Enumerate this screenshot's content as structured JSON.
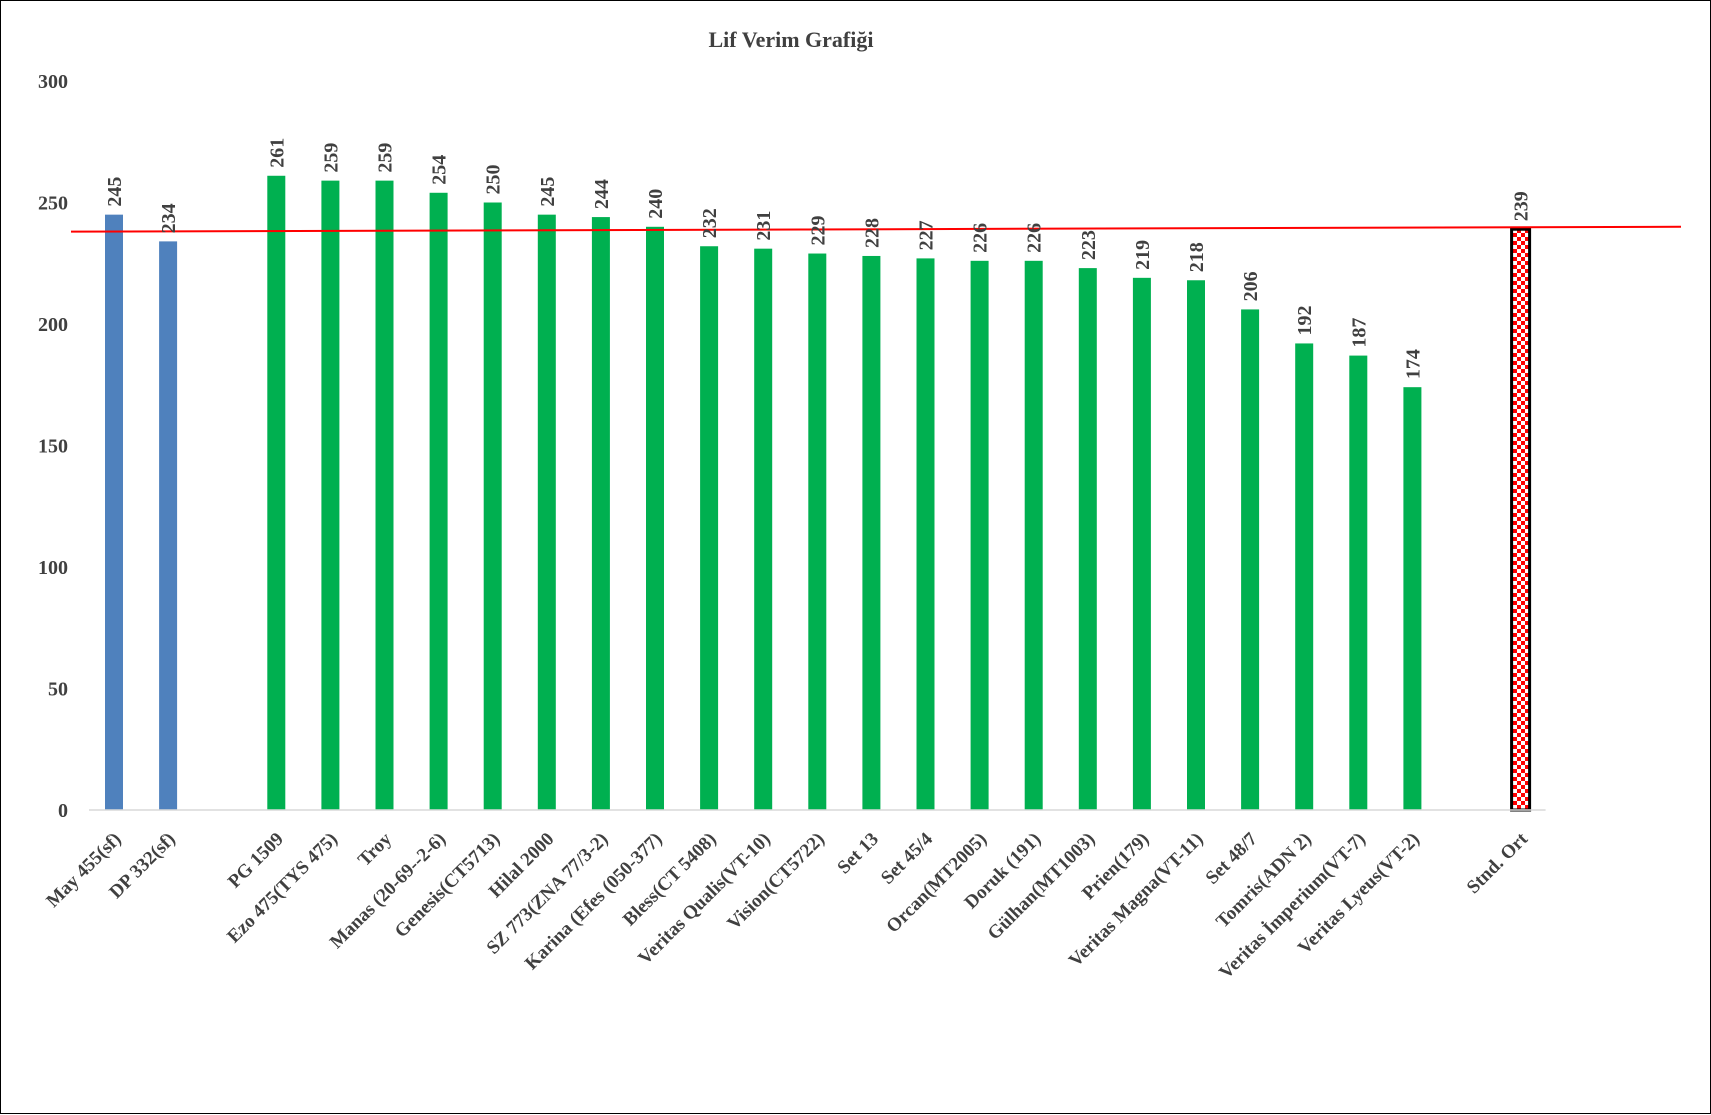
{
  "chart_data": {
    "type": "bar",
    "title": "Lif Verim Grafiği",
    "xlabel": "",
    "ylabel": "",
    "ylim": [
      0,
      300
    ],
    "yticks": [
      0,
      50,
      100,
      150,
      200,
      250,
      300
    ],
    "grid": false,
    "legend": "none",
    "categories": [
      "May 455(sf)",
      "DP 332(sf)",
      "",
      "PG 1509",
      "Ezo 475(TYS 475)",
      "Troy",
      "Manas (20-69--2-6)",
      "Genesis(CT5713)",
      "Hilal 2000",
      "SZ 773(ZNA 77/3-2)",
      "Karina (Efes (050-377)",
      "Bless(CT 5408)",
      "Veritas Qualis(VT-10)",
      "Vision(CT5722)",
      "Set 13",
      "Set 45/4",
      "Orcan(MT2005)",
      "Doruk (191)",
      "Gülhan(MT1003)",
      "Prien(179)",
      "Veritas Magna(VT-11)",
      "Set 48/7",
      "Tomris(ADN 2)",
      "Veritas İmperium(VT-7)",
      "Veritas Lyeus(VT-2)",
      "",
      "Stnd. Ort"
    ],
    "values": [
      245,
      234,
      null,
      261,
      259,
      259,
      254,
      250,
      245,
      244,
      240,
      232,
      231,
      229,
      228,
      227,
      226,
      226,
      223,
      219,
      218,
      206,
      192,
      187,
      174,
      null,
      239
    ],
    "groups": [
      "standard",
      "standard",
      "",
      "candidate",
      "candidate",
      "candidate",
      "candidate",
      "candidate",
      "candidate",
      "candidate",
      "candidate",
      "candidate",
      "candidate",
      "candidate",
      "candidate",
      "candidate",
      "candidate",
      "candidate",
      "candidate",
      "candidate",
      "candidate",
      "candidate",
      "candidate",
      "candidate",
      "candidate",
      "",
      "average"
    ],
    "colors": {
      "standard": "#4f81bd",
      "candidate": "#00b050",
      "average_pattern": [
        "#ff0000",
        "#ffffff"
      ],
      "average_border": "#000000",
      "reference_line": "#ff0000"
    },
    "reference_line": {
      "start": 238,
      "end": 240
    }
  }
}
